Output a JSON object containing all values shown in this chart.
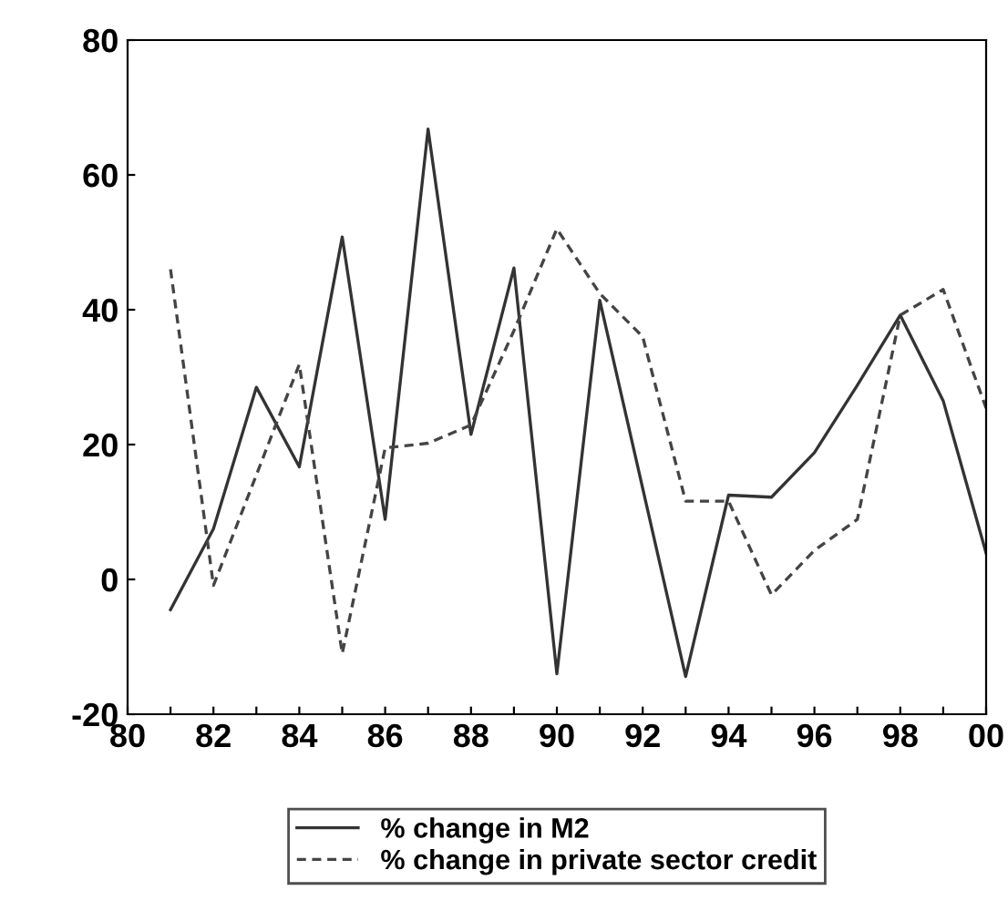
{
  "chart_data": {
    "type": "line",
    "x": [
      1981,
      1982,
      1983,
      1984,
      1985,
      1986,
      1987,
      1988,
      1989,
      1990,
      1991,
      1992,
      1993,
      1994,
      1995,
      1996,
      1997,
      1998,
      1999,
      2000
    ],
    "series": [
      {
        "name": "% change in M2",
        "color": "#333333",
        "line_style": "solid",
        "values": [
          -4.5,
          7.5,
          28.5,
          16.7,
          50.8,
          8.9,
          66.8,
          21.5,
          46.2,
          -14,
          41.4,
          13.5,
          -14.4,
          12.5,
          12.2,
          18.8,
          28.8,
          39.2,
          26.5,
          3.9
        ]
      },
      {
        "name": "% change in private sector credit",
        "color": "#444444",
        "line_style": "dashed",
        "values": [
          46,
          -0.9,
          15.5,
          31.9,
          -11,
          19.5,
          20.2,
          22.9,
          36.9,
          52,
          42.4,
          36,
          11.6,
          11.6,
          -2.3,
          4.3,
          8.9,
          39.2,
          43,
          25.4
        ]
      }
    ],
    "xlim": [
      1980,
      2000
    ],
    "xticks": [
      {
        "value": 1980,
        "label": "80"
      },
      {
        "value": 1981,
        "label": null
      },
      {
        "value": 1982,
        "label": "82"
      },
      {
        "value": 1983,
        "label": null
      },
      {
        "value": 1984,
        "label": "84"
      },
      {
        "value": 1985,
        "label": null
      },
      {
        "value": 1986,
        "label": "86"
      },
      {
        "value": 1987,
        "label": null
      },
      {
        "value": 1988,
        "label": "88"
      },
      {
        "value": 1989,
        "label": null
      },
      {
        "value": 1990,
        "label": "90"
      },
      {
        "value": 1991,
        "label": null
      },
      {
        "value": 1992,
        "label": "92"
      },
      {
        "value": 1993,
        "label": null
      },
      {
        "value": 1994,
        "label": "94"
      },
      {
        "value": 1995,
        "label": null
      },
      {
        "value": 1996,
        "label": "96"
      },
      {
        "value": 1997,
        "label": null
      },
      {
        "value": 1998,
        "label": "98"
      },
      {
        "value": 1999,
        "label": null
      },
      {
        "value": 2000,
        "label": "00"
      }
    ],
    "ylim": [
      -20,
      80
    ],
    "yticks": [
      -20,
      0,
      20,
      40,
      60,
      80
    ],
    "grid": false,
    "legend": "bottom"
  }
}
